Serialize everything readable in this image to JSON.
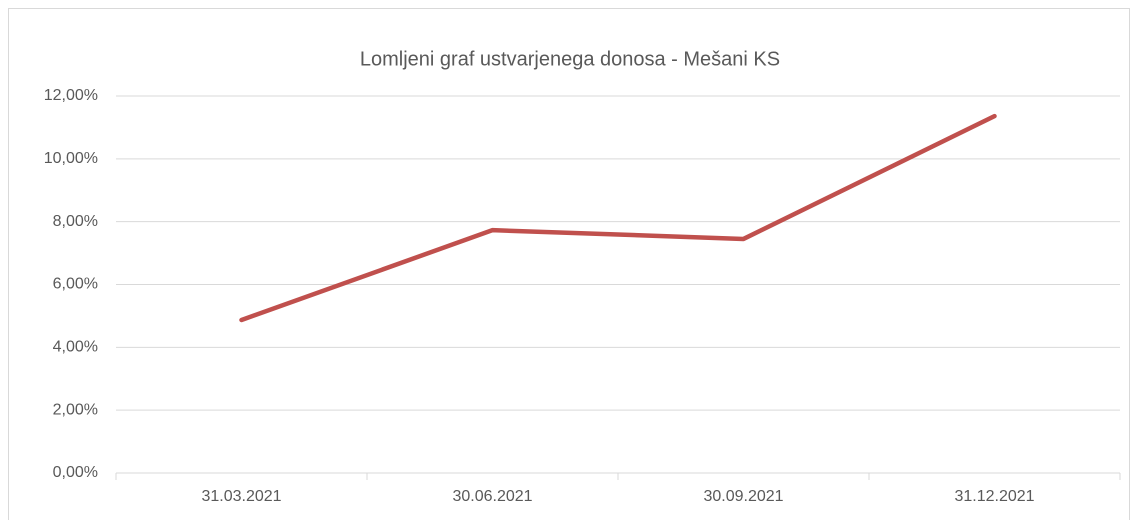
{
  "chart_data": {
    "type": "line",
    "title": "Lomljeni graf ustvarjenega donosa - Mešani KS",
    "categories": [
      "31.03.2021",
      "30.06.2021",
      "30.09.2021",
      "31.12.2021"
    ],
    "series": [
      {
        "name": "Mešani KS",
        "color": "#c0504d",
        "values": [
          4.87,
          7.73,
          7.45,
          11.36
        ]
      }
    ],
    "ylim": [
      0,
      12
    ],
    "yticks": [
      {
        "value": 0,
        "label": "0,00%"
      },
      {
        "value": 2,
        "label": "2,00%"
      },
      {
        "value": 4,
        "label": "4,00%"
      },
      {
        "value": 6,
        "label": "6,00%"
      },
      {
        "value": 8,
        "label": "8,00%"
      },
      {
        "value": 10,
        "label": "10,00%"
      },
      {
        "value": 12,
        "label": "12,00%"
      }
    ],
    "grid": true
  }
}
